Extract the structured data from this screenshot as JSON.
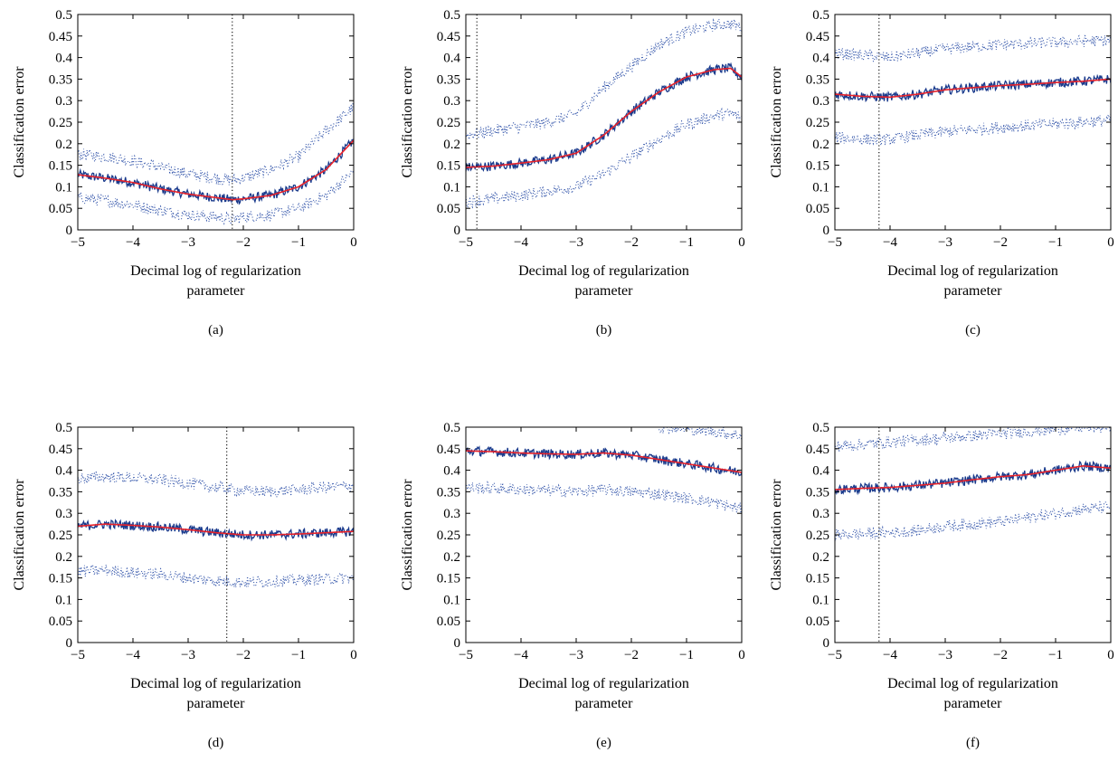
{
  "chart_data": [
    {
      "type": "line",
      "caption": "(a)",
      "xlabel": "Decimal log of regularization parameter",
      "ylabel": "Classification error",
      "xlim": [
        -5,
        0
      ],
      "ylim": [
        0,
        0.5
      ],
      "xticks": [
        -5,
        -4,
        -3,
        -2,
        -1,
        0
      ],
      "yticks": [
        0,
        0.05,
        0.1,
        0.15,
        0.2,
        0.25,
        0.3,
        0.35,
        0.4,
        0.45,
        0.5
      ],
      "vline_x": -2.2,
      "series": [
        {
          "role": "raw error",
          "x": [
            -5,
            -4.5,
            -4,
            -3.5,
            -3,
            -2.5,
            -2.2,
            -2,
            -1.5,
            -1,
            -0.5,
            0
          ],
          "y": [
            0.128,
            0.12,
            0.11,
            0.095,
            0.083,
            0.075,
            0.07,
            0.072,
            0.08,
            0.1,
            0.14,
            0.208
          ]
        },
        {
          "role": "smoothed error",
          "x": [
            -5,
            -4.5,
            -4,
            -3.5,
            -3,
            -2.5,
            -2.2,
            -2,
            -1.5,
            -1,
            -0.5,
            0
          ],
          "y": [
            0.128,
            0.12,
            0.11,
            0.095,
            0.083,
            0.075,
            0.07,
            0.072,
            0.08,
            0.1,
            0.14,
            0.208
          ]
        },
        {
          "role": "upper bound",
          "x": [
            -5,
            -4.5,
            -4,
            -3.5,
            -3,
            -2.5,
            -2.2,
            -2,
            -1.5,
            -1,
            -0.5,
            0
          ],
          "y": [
            0.175,
            0.17,
            0.16,
            0.145,
            0.13,
            0.12,
            0.115,
            0.12,
            0.14,
            0.17,
            0.23,
            0.285
          ]
        },
        {
          "role": "lower bound",
          "x": [
            -5,
            -4.5,
            -4,
            -3.5,
            -3,
            -2.5,
            -2.2,
            -2,
            -1.5,
            -1,
            -0.5,
            0
          ],
          "y": [
            0.075,
            0.068,
            0.058,
            0.045,
            0.035,
            0.03,
            0.025,
            0.03,
            0.035,
            0.05,
            0.08,
            0.135
          ]
        }
      ]
    },
    {
      "type": "line",
      "caption": "(b)",
      "xlabel": "Decimal log of regularization parameter",
      "ylabel": "Classification error",
      "xlim": [
        -5,
        0
      ],
      "ylim": [
        0,
        0.5
      ],
      "xticks": [
        -5,
        -4,
        -3,
        -2,
        -1,
        0
      ],
      "yticks": [
        0,
        0.05,
        0.1,
        0.15,
        0.2,
        0.25,
        0.3,
        0.35,
        0.4,
        0.45,
        0.5
      ],
      "vline_x": -4.8,
      "series": [
        {
          "role": "raw error",
          "x": [
            -5,
            -4.5,
            -4,
            -3.5,
            -3,
            -2.5,
            -2,
            -1.5,
            -1,
            -0.5,
            -0.2,
            0
          ],
          "y": [
            0.145,
            0.148,
            0.155,
            0.163,
            0.178,
            0.22,
            0.275,
            0.32,
            0.355,
            0.372,
            0.375,
            0.355
          ]
        },
        {
          "role": "smoothed error",
          "x": [
            -5,
            -4.5,
            -4,
            -3.5,
            -3,
            -2.5,
            -2,
            -1.5,
            -1,
            -0.5,
            -0.2,
            0
          ],
          "y": [
            0.145,
            0.148,
            0.155,
            0.163,
            0.178,
            0.22,
            0.275,
            0.32,
            0.355,
            0.372,
            0.375,
            0.355
          ]
        },
        {
          "role": "upper bound",
          "x": [
            -5,
            -4.5,
            -4,
            -3.5,
            -3,
            -2.5,
            -2,
            -1.5,
            -1,
            -0.5,
            -0.2,
            0
          ],
          "y": [
            0.22,
            0.23,
            0.24,
            0.25,
            0.27,
            0.33,
            0.38,
            0.43,
            0.46,
            0.475,
            0.478,
            0.47
          ]
        },
        {
          "role": "lower bound",
          "x": [
            -5,
            -4.5,
            -4,
            -3.5,
            -3,
            -2.5,
            -2,
            -1.5,
            -1,
            -0.5,
            -0.2,
            0
          ],
          "y": [
            0.065,
            0.072,
            0.08,
            0.09,
            0.1,
            0.13,
            0.17,
            0.21,
            0.245,
            0.265,
            0.27,
            0.26
          ]
        }
      ]
    },
    {
      "type": "line",
      "caption": "(c)",
      "xlabel": "Decimal log of regularization parameter",
      "ylabel": "Classification error",
      "xlim": [
        -5,
        0
      ],
      "ylim": [
        0,
        0.5
      ],
      "xticks": [
        -5,
        -4,
        -3,
        -2,
        -1,
        0
      ],
      "yticks": [
        0,
        0.05,
        0.1,
        0.15,
        0.2,
        0.25,
        0.3,
        0.35,
        0.4,
        0.45,
        0.5
      ],
      "vline_x": -4.2,
      "series": [
        {
          "role": "raw error",
          "x": [
            -5,
            -4.5,
            -4,
            -3.5,
            -3,
            -2.5,
            -2,
            -1.5,
            -1,
            -0.5,
            0
          ],
          "y": [
            0.315,
            0.31,
            0.308,
            0.315,
            0.325,
            0.33,
            0.335,
            0.338,
            0.342,
            0.345,
            0.35
          ]
        },
        {
          "role": "smoothed error",
          "x": [
            -5,
            -4.5,
            -4,
            -3.5,
            -3,
            -2.5,
            -2,
            -1.5,
            -1,
            -0.5,
            0
          ],
          "y": [
            0.315,
            0.31,
            0.308,
            0.315,
            0.325,
            0.33,
            0.335,
            0.338,
            0.342,
            0.345,
            0.35
          ]
        },
        {
          "role": "upper bound",
          "x": [
            -5,
            -4.5,
            -4,
            -3.5,
            -3,
            -2.5,
            -2,
            -1.5,
            -1,
            -0.5,
            0
          ],
          "y": [
            0.41,
            0.405,
            0.4,
            0.41,
            0.42,
            0.425,
            0.43,
            0.432,
            0.435,
            0.438,
            0.44
          ]
        },
        {
          "role": "lower bound",
          "x": [
            -5,
            -4.5,
            -4,
            -3.5,
            -3,
            -2.5,
            -2,
            -1.5,
            -1,
            -0.5,
            0
          ],
          "y": [
            0.215,
            0.21,
            0.21,
            0.22,
            0.228,
            0.233,
            0.238,
            0.242,
            0.246,
            0.25,
            0.255
          ]
        }
      ]
    },
    {
      "type": "line",
      "caption": "(d)",
      "xlabel": "Decimal log of regularization parameter",
      "ylabel": "Classification error",
      "xlim": [
        -5,
        0
      ],
      "ylim": [
        0,
        0.5
      ],
      "xticks": [
        -5,
        -4,
        -3,
        -2,
        -1,
        0
      ],
      "yticks": [
        0,
        0.05,
        0.1,
        0.15,
        0.2,
        0.25,
        0.3,
        0.35,
        0.4,
        0.45,
        0.5
      ],
      "vline_x": -2.3,
      "series": [
        {
          "role": "raw error",
          "x": [
            -5,
            -4.5,
            -4,
            -3.5,
            -3,
            -2.5,
            -2,
            -1.5,
            -1,
            -0.5,
            0
          ],
          "y": [
            0.27,
            0.275,
            0.272,
            0.268,
            0.262,
            0.255,
            0.25,
            0.25,
            0.252,
            0.255,
            0.258
          ]
        },
        {
          "role": "smoothed error",
          "x": [
            -5,
            -4.5,
            -4,
            -3.5,
            -3,
            -2.5,
            -2,
            -1.5,
            -1,
            -0.5,
            0
          ],
          "y": [
            0.27,
            0.275,
            0.272,
            0.268,
            0.262,
            0.255,
            0.25,
            0.25,
            0.252,
            0.255,
            0.258
          ]
        },
        {
          "role": "upper bound",
          "x": [
            -5,
            -4.5,
            -4,
            -3.5,
            -3,
            -2.5,
            -2,
            -1.5,
            -1,
            -0.5,
            0
          ],
          "y": [
            0.38,
            0.385,
            0.382,
            0.378,
            0.37,
            0.36,
            0.352,
            0.35,
            0.355,
            0.36,
            0.365
          ]
        },
        {
          "role": "lower bound",
          "x": [
            -5,
            -4.5,
            -4,
            -3.5,
            -3,
            -2.5,
            -2,
            -1.5,
            -1,
            -0.5,
            0
          ],
          "y": [
            0.165,
            0.168,
            0.162,
            0.158,
            0.15,
            0.143,
            0.14,
            0.142,
            0.145,
            0.148,
            0.15
          ]
        }
      ]
    },
    {
      "type": "line",
      "caption": "(e)",
      "xlabel": "Decimal log of regularization parameter",
      "ylabel": "Classification error",
      "xlim": [
        -5,
        0
      ],
      "ylim": [
        0,
        0.5
      ],
      "xticks": [
        -5,
        -4,
        -3,
        -2,
        -1,
        0
      ],
      "yticks": [
        0,
        0.05,
        0.1,
        0.15,
        0.2,
        0.25,
        0.3,
        0.35,
        0.4,
        0.45,
        0.5
      ],
      "vline_x": null,
      "series": [
        {
          "role": "raw error",
          "x": [
            -5,
            -4.5,
            -4,
            -3.5,
            -3,
            -2.5,
            -2,
            -1.5,
            -1,
            -0.5,
            0
          ],
          "y": [
            0.445,
            0.443,
            0.44,
            0.438,
            0.437,
            0.44,
            0.435,
            0.425,
            0.415,
            0.405,
            0.395
          ]
        },
        {
          "role": "smoothed error",
          "x": [
            -5,
            -4.5,
            -4,
            -3.5,
            -3,
            -2.5,
            -2,
            -1.5,
            -1,
            -0.5,
            0
          ],
          "y": [
            0.445,
            0.443,
            0.44,
            0.438,
            0.437,
            0.44,
            0.435,
            0.425,
            0.415,
            0.405,
            0.395
          ]
        },
        {
          "role": "upper bound",
          "x": [
            -1.5,
            -1.2,
            -1,
            -0.5,
            0
          ],
          "y": [
            0.5,
            0.5,
            0.495,
            0.49,
            0.48
          ]
        },
        {
          "role": "lower bound",
          "x": [
            -5,
            -4.5,
            -4,
            -3.5,
            -3,
            -2.5,
            -2,
            -1.5,
            -1,
            -0.5,
            0
          ],
          "y": [
            0.36,
            0.358,
            0.355,
            0.353,
            0.35,
            0.355,
            0.35,
            0.345,
            0.335,
            0.325,
            0.31
          ]
        }
      ]
    },
    {
      "type": "line",
      "caption": "(f)",
      "xlabel": "Decimal log of regularization parameter",
      "ylabel": "Classification error",
      "xlim": [
        -5,
        0
      ],
      "ylim": [
        0,
        0.5
      ],
      "xticks": [
        -5,
        -4,
        -3,
        -2,
        -1,
        0
      ],
      "yticks": [
        0,
        0.05,
        0.1,
        0.15,
        0.2,
        0.25,
        0.3,
        0.35,
        0.4,
        0.45,
        0.5
      ],
      "vline_x": -4.2,
      "series": [
        {
          "role": "raw error",
          "x": [
            -5,
            -4.5,
            -4,
            -3.5,
            -3,
            -2.5,
            -2,
            -1.5,
            -1,
            -0.5,
            0
          ],
          "y": [
            0.355,
            0.358,
            0.36,
            0.365,
            0.37,
            0.378,
            0.385,
            0.39,
            0.4,
            0.41,
            0.405
          ]
        },
        {
          "role": "smoothed error",
          "x": [
            -5,
            -4.5,
            -4,
            -3.5,
            -3,
            -2.5,
            -2,
            -1.5,
            -1,
            -0.5,
            0
          ],
          "y": [
            0.355,
            0.358,
            0.36,
            0.365,
            0.37,
            0.378,
            0.385,
            0.39,
            0.4,
            0.41,
            0.405
          ]
        },
        {
          "role": "upper bound",
          "x": [
            -5,
            -4.5,
            -4,
            -3.5,
            -3,
            -2.5,
            -2,
            -1.5,
            -1,
            -0.5,
            0
          ],
          "y": [
            0.455,
            0.46,
            0.465,
            0.47,
            0.475,
            0.48,
            0.485,
            0.49,
            0.495,
            0.5,
            0.5
          ]
        },
        {
          "role": "lower bound",
          "x": [
            -5,
            -4.5,
            -4,
            -3.5,
            -3,
            -2.5,
            -2,
            -1.5,
            -1,
            -0.5,
            0
          ],
          "y": [
            0.25,
            0.252,
            0.255,
            0.26,
            0.27,
            0.275,
            0.28,
            0.29,
            0.3,
            0.31,
            0.315
          ]
        }
      ]
    }
  ],
  "colors": {
    "raw": "#1a3a8c",
    "smooth": "#e8222a",
    "bound": "#3355aa",
    "axis": "#000000"
  }
}
